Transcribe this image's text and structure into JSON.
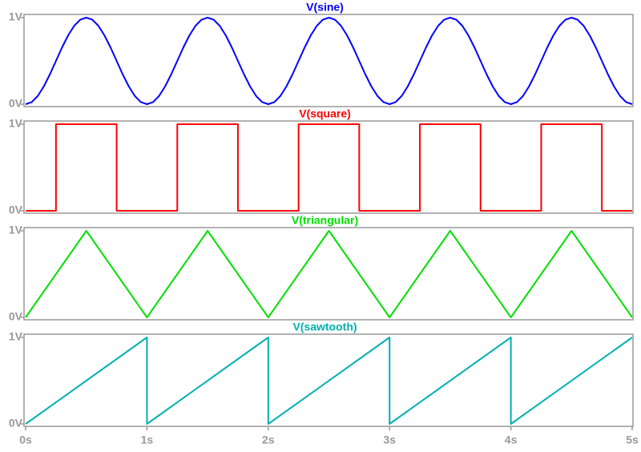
{
  "chart_data": [
    {
      "type": "line",
      "title": "V(sine)",
      "xlim": [
        0,
        5
      ],
      "ylim": [
        0,
        1
      ],
      "yticks": [
        {
          "value": 0,
          "label": "0V"
        },
        {
          "value": 1,
          "label": "1V"
        }
      ],
      "x": [
        0,
        0.05,
        0.1,
        0.15,
        0.2,
        0.25,
        0.3,
        0.35,
        0.4,
        0.45,
        0.5,
        0.55,
        0.6,
        0.65,
        0.7,
        0.75,
        0.8,
        0.85,
        0.9,
        0.95,
        1,
        1.05,
        1.1,
        1.15,
        1.2,
        1.25,
        1.3,
        1.35,
        1.4,
        1.45,
        1.5,
        1.55,
        1.6,
        1.65,
        1.7,
        1.75,
        1.8,
        1.85,
        1.9,
        1.95,
        2,
        2.05,
        2.1,
        2.15,
        2.2,
        2.25,
        2.3,
        2.35,
        2.4,
        2.45,
        2.5,
        2.55,
        2.6,
        2.65,
        2.7,
        2.75,
        2.8,
        2.85,
        2.9,
        2.95,
        3,
        3.05,
        3.1,
        3.15,
        3.2,
        3.25,
        3.3,
        3.35,
        3.4,
        3.45,
        3.5,
        3.55,
        3.6,
        3.65,
        3.7,
        3.75,
        3.8,
        3.85,
        3.9,
        3.95,
        4,
        4.05,
        4.1,
        4.15,
        4.2,
        4.25,
        4.3,
        4.35,
        4.4,
        4.45,
        4.5,
        4.55,
        4.6,
        4.65,
        4.7,
        4.75,
        4.8,
        4.85,
        4.9,
        4.95,
        5
      ],
      "series": [
        {
          "name": "V(sine)",
          "color": "#0000ff",
          "values": [
            0,
            0.024,
            0.095,
            0.206,
            0.345,
            0.5,
            0.655,
            0.794,
            0.905,
            0.976,
            1,
            0.976,
            0.905,
            0.794,
            0.655,
            0.5,
            0.345,
            0.206,
            0.095,
            0.024,
            0,
            0.024,
            0.095,
            0.206,
            0.345,
            0.5,
            0.655,
            0.794,
            0.905,
            0.976,
            1,
            0.976,
            0.905,
            0.794,
            0.655,
            0.5,
            0.345,
            0.206,
            0.095,
            0.024,
            0,
            0.024,
            0.095,
            0.206,
            0.345,
            0.5,
            0.655,
            0.794,
            0.905,
            0.976,
            1,
            0.976,
            0.905,
            0.794,
            0.655,
            0.5,
            0.345,
            0.206,
            0.095,
            0.024,
            0,
            0.024,
            0.095,
            0.206,
            0.345,
            0.5,
            0.655,
            0.794,
            0.905,
            0.976,
            1,
            0.976,
            0.905,
            0.794,
            0.655,
            0.5,
            0.345,
            0.206,
            0.095,
            0.024,
            0,
            0.024,
            0.095,
            0.206,
            0.345,
            0.5,
            0.655,
            0.794,
            0.905,
            0.976,
            1,
            0.976,
            0.905,
            0.794,
            0.655,
            0.5,
            0.345,
            0.206,
            0.095,
            0.024,
            0
          ]
        }
      ]
    },
    {
      "type": "line",
      "title": "V(square)",
      "xlim": [
        0,
        5
      ],
      "ylim": [
        0,
        1
      ],
      "yticks": [
        {
          "value": 0,
          "label": "0V"
        },
        {
          "value": 1,
          "label": "1V"
        }
      ],
      "x": [
        0,
        0.25,
        0.25,
        0.75,
        0.75,
        1.25,
        1.25,
        1.75,
        1.75,
        2.25,
        2.25,
        2.75,
        2.75,
        3.25,
        3.25,
        3.75,
        3.75,
        4.25,
        4.25,
        4.75,
        4.75,
        5
      ],
      "series": [
        {
          "name": "V(square)",
          "color": "#ff0000",
          "values": [
            0,
            0,
            1,
            1,
            0,
            0,
            1,
            1,
            0,
            0,
            1,
            1,
            0,
            0,
            1,
            1,
            0,
            0,
            1,
            1,
            0,
            0
          ]
        }
      ]
    },
    {
      "type": "line",
      "title": "V(triangular)",
      "xlim": [
        0,
        5
      ],
      "ylim": [
        0,
        1
      ],
      "yticks": [
        {
          "value": 0,
          "label": "0V"
        },
        {
          "value": 1,
          "label": "1V"
        }
      ],
      "x": [
        0,
        0.5,
        1,
        1.5,
        2,
        2.5,
        3,
        3.5,
        4,
        4.5,
        5
      ],
      "series": [
        {
          "name": "V(triangular)",
          "color": "#00e000",
          "values": [
            0,
            1,
            0,
            1,
            0,
            1,
            0,
            1,
            0,
            1,
            0
          ]
        }
      ]
    },
    {
      "type": "line",
      "title": "V(sawtooth)",
      "xlim": [
        0,
        5
      ],
      "ylim": [
        0,
        1
      ],
      "yticks": [
        {
          "value": 0,
          "label": "0V"
        },
        {
          "value": 1,
          "label": "1V"
        }
      ],
      "xticks": [
        {
          "value": 0,
          "label": "0s"
        },
        {
          "value": 1,
          "label": "1s"
        },
        {
          "value": 2,
          "label": "2s"
        },
        {
          "value": 3,
          "label": "3s"
        },
        {
          "value": 4,
          "label": "4s"
        },
        {
          "value": 5,
          "label": "5s"
        }
      ],
      "x": [
        0,
        1,
        1,
        2,
        2,
        3,
        3,
        4,
        4,
        5
      ],
      "series": [
        {
          "name": "V(sawtooth)",
          "color": "#00b0b0",
          "values": [
            0,
            1,
            0,
            1,
            0,
            1,
            0,
            1,
            0,
            1
          ]
        }
      ]
    }
  ]
}
